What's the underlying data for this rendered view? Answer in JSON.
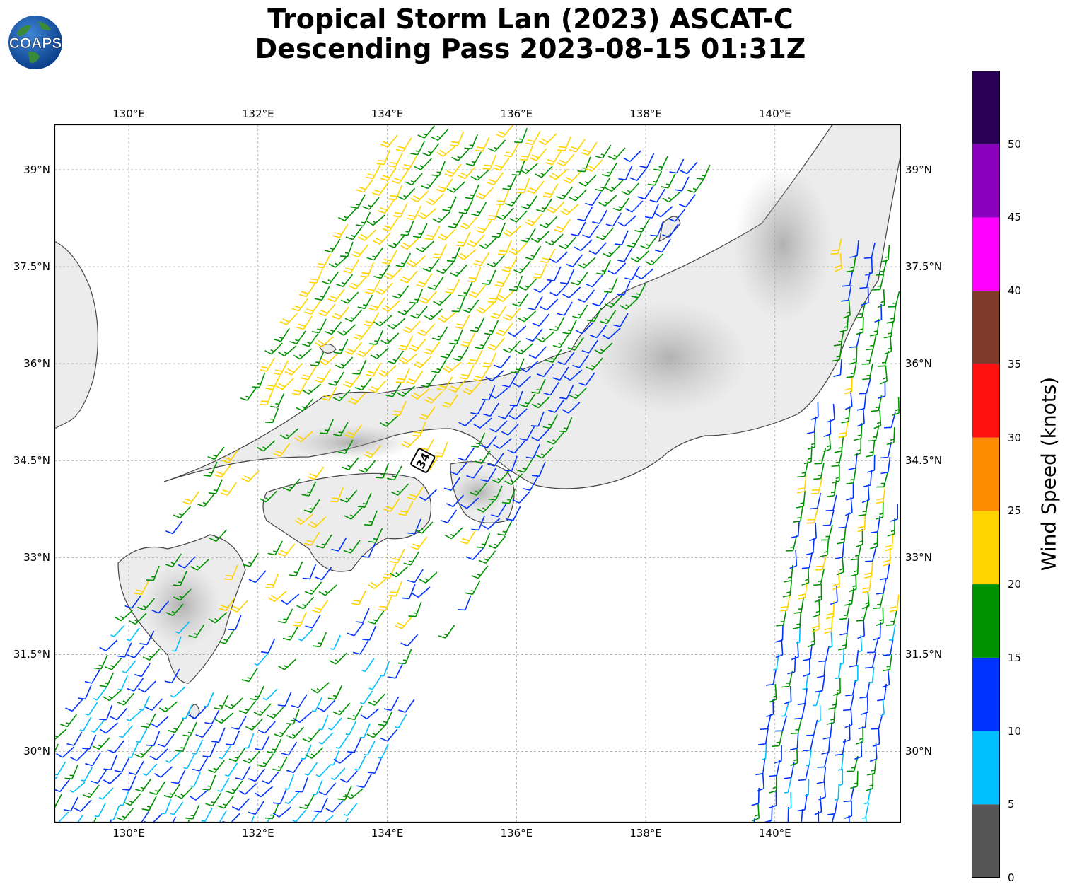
{
  "header": {
    "title_line_1": "Tropical Storm Lan (2023) ASCAT-C",
    "title_line_2": "Descending Pass 2023-08-15 01:31Z",
    "logo_text": "COAPS"
  },
  "map": {
    "lon_range": [
      128.85,
      141.95
    ],
    "lat_range": [
      28.9,
      39.7
    ],
    "lon_ticks": [
      {
        "value": 130,
        "label": "130°E"
      },
      {
        "value": 132,
        "label": "132°E"
      },
      {
        "value": 134,
        "label": "134°E"
      },
      {
        "value": 136,
        "label": "136°E"
      },
      {
        "value": 138,
        "label": "138°E"
      },
      {
        "value": 140,
        "label": "140°E"
      }
    ],
    "lat_ticks": [
      {
        "value": 39,
        "label": "39°N"
      },
      {
        "value": 37.5,
        "label": "37.5°N"
      },
      {
        "value": 36,
        "label": "36°N"
      },
      {
        "value": 34.5,
        "label": "34.5°N"
      },
      {
        "value": 33,
        "label": "33°N"
      },
      {
        "value": 31.5,
        "label": "31.5°N"
      },
      {
        "value": 30,
        "label": "30°N"
      }
    ],
    "grid": true,
    "storm_marker": {
      "label": "34",
      "lon": 134.55,
      "lat": 34.5
    }
  },
  "colorbar": {
    "title": "Wind Speed (knots)",
    "bins": [
      {
        "min": 0,
        "max": 5,
        "color": "#555555"
      },
      {
        "min": 5,
        "max": 10,
        "color": "#00bfff"
      },
      {
        "min": 10,
        "max": 15,
        "color": "#0033ff"
      },
      {
        "min": 15,
        "max": 20,
        "color": "#009100"
      },
      {
        "min": 20,
        "max": 25,
        "color": "#ffd400"
      },
      {
        "min": 25,
        "max": 30,
        "color": "#ff8c00"
      },
      {
        "min": 30,
        "max": 35,
        "color": "#ff1010"
      },
      {
        "min": 35,
        "max": 40,
        "color": "#7f3b2a"
      },
      {
        "min": 40,
        "max": 45,
        "color": "#ff00ff"
      },
      {
        "min": 45,
        "max": 50,
        "color": "#8800bb"
      },
      {
        "min": 50,
        "max": 55,
        "color": "#2a0055"
      }
    ],
    "tick_labels": [
      "0",
      "5",
      "10",
      "15",
      "20",
      "25",
      "30",
      "35",
      "40",
      "45",
      "50"
    ]
  }
}
